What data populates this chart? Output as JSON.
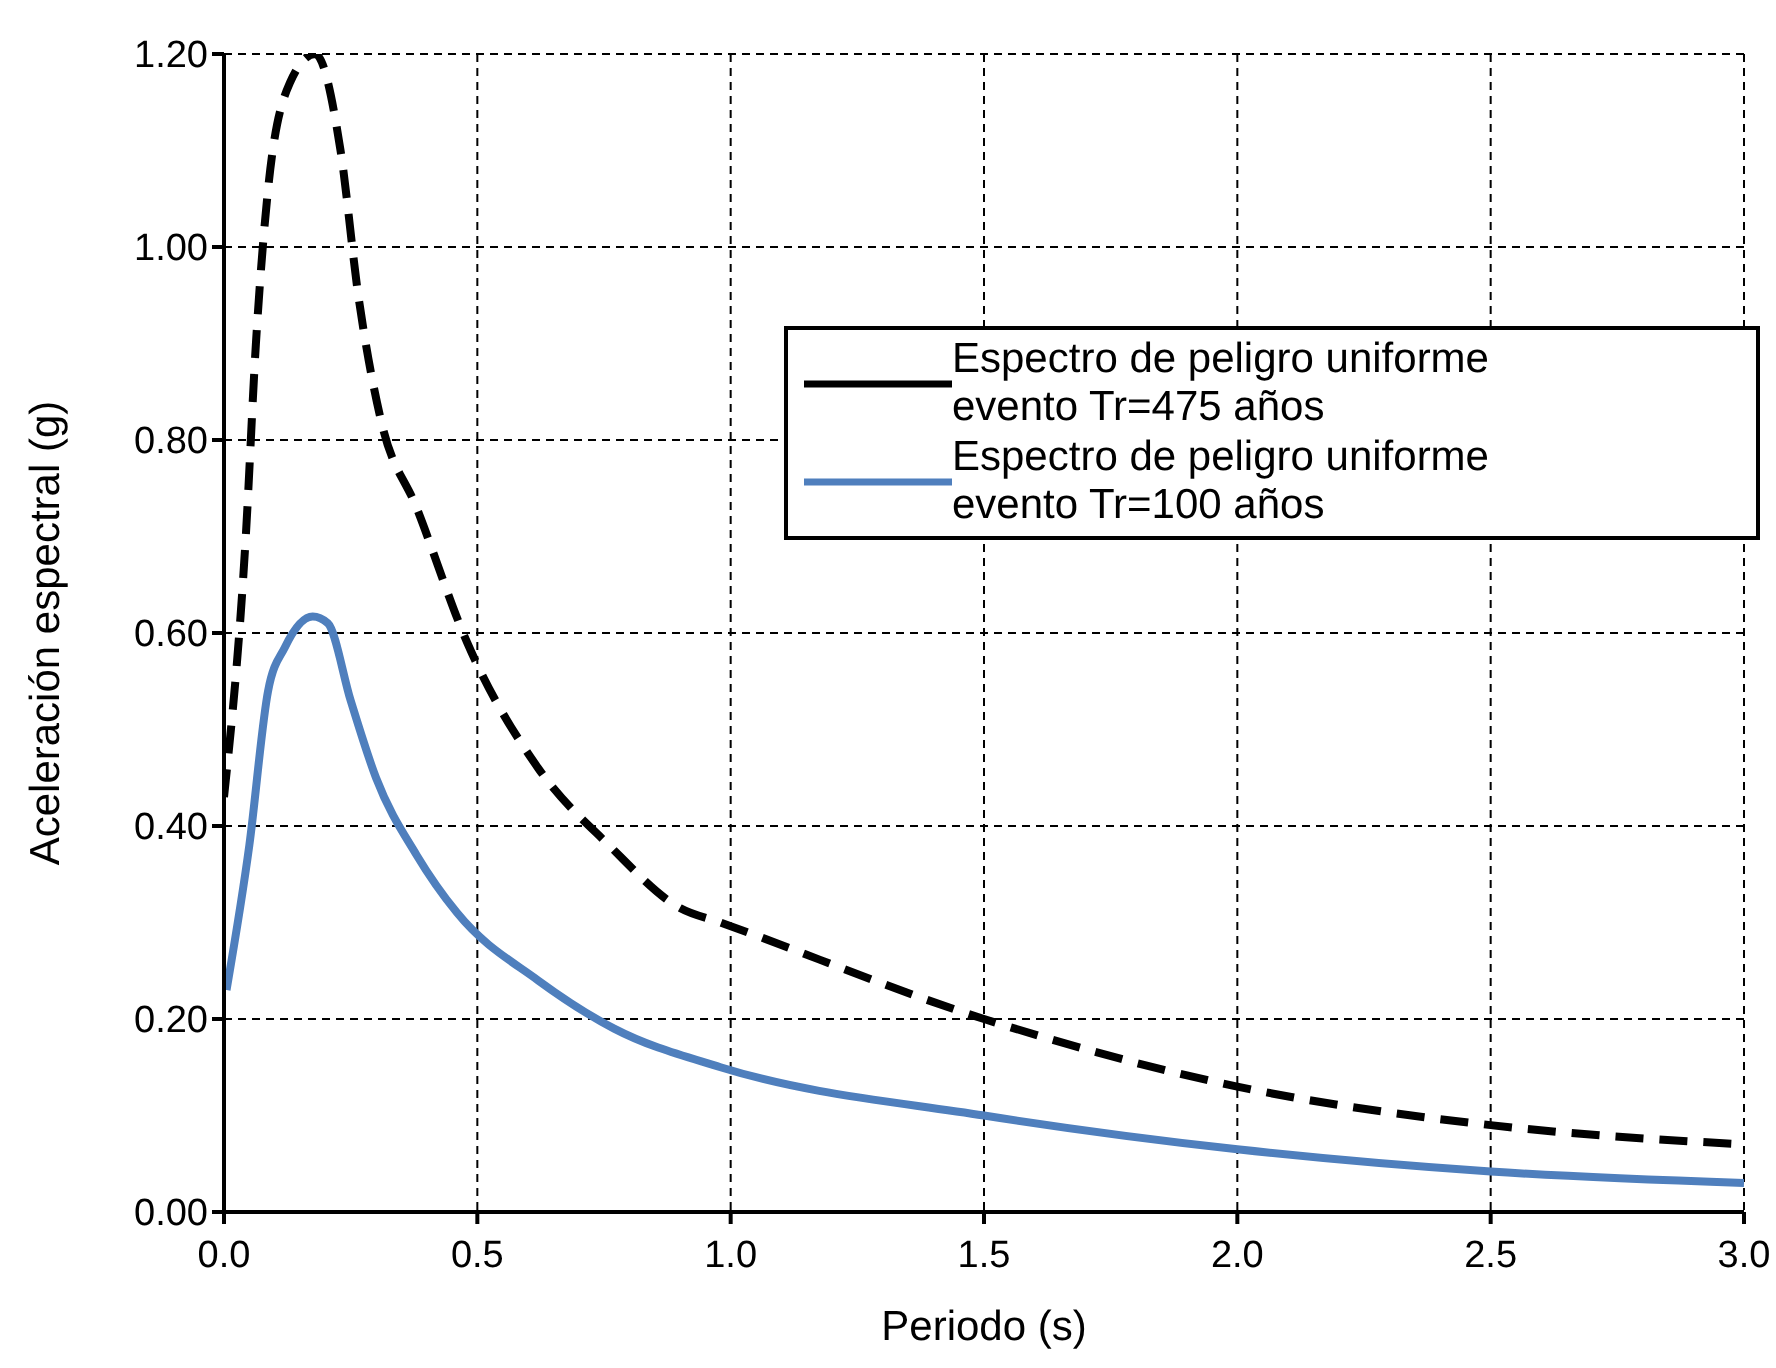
{
  "chart_data": {
    "type": "line",
    "xlabel": "Periodo (s)",
    "ylabel": "Aceleración espectral (g)",
    "xlim": [
      0,
      3
    ],
    "xticks": [
      {
        "value": 0,
        "label": "0.0"
      },
      {
        "value": 0.5,
        "label": "0.5"
      },
      {
        "value": 1,
        "label": "1.0"
      },
      {
        "value": 1.5,
        "label": "1.5"
      },
      {
        "value": 2,
        "label": "2.0"
      },
      {
        "value": 2.5,
        "label": "2.5"
      },
      {
        "value": 3,
        "label": "3.0"
      }
    ],
    "ylim": [
      0,
      1.2
    ],
    "yticks": [
      {
        "value": 0,
        "label": "0.00"
      },
      {
        "value": 0.2,
        "label": "0.20"
      },
      {
        "value": 0.4,
        "label": "0.40"
      },
      {
        "value": 0.6,
        "label": "0.60"
      },
      {
        "value": 0.8,
        "label": "0.80"
      },
      {
        "value": 1,
        "label": "1.00"
      },
      {
        "value": 1.2,
        "label": "1.20"
      }
    ],
    "grid": true,
    "legend": "top right",
    "marker": "none",
    "series": [
      {
        "name": "Espectro de peligro uniforme evento Tr=475 años",
        "color": "#000000",
        "line_style": "dashed",
        "x": [
          0,
          0.043,
          0.063,
          0.087,
          0.13,
          0.18,
          0.23,
          0.265,
          0.31,
          0.38,
          0.48,
          0.62,
          0.76,
          0.9,
          0.98,
          1.5,
          2,
          2.5,
          3
        ],
        "values": [
          0.43,
          0.7,
          0.9,
          1.06,
          1.17,
          1.2,
          1.1,
          0.95,
          0.82,
          0.73,
          0.59,
          0.46,
          0.38,
          0.315,
          0.3,
          0.2,
          0.13,
          0.09,
          0.07
        ]
      },
      {
        "name": "Espectro de peligro uniforme evento Tr=100 años",
        "color": "#4f7fbd",
        "line_style": "solid",
        "x": [
          0.005,
          0.05,
          0.087,
          0.12,
          0.175,
          0.205,
          0.25,
          0.3,
          0.38,
          0.46,
          0.62,
          0.77,
          0.98,
          1.5,
          2,
          2.5,
          3
        ],
        "values": [
          0.23,
          0.38,
          0.54,
          0.585,
          0.617,
          0.61,
          0.53,
          0.45,
          0.37,
          0.31,
          0.24,
          0.19,
          0.15,
          0.1,
          0.065,
          0.042,
          0.03
        ]
      }
    ]
  }
}
